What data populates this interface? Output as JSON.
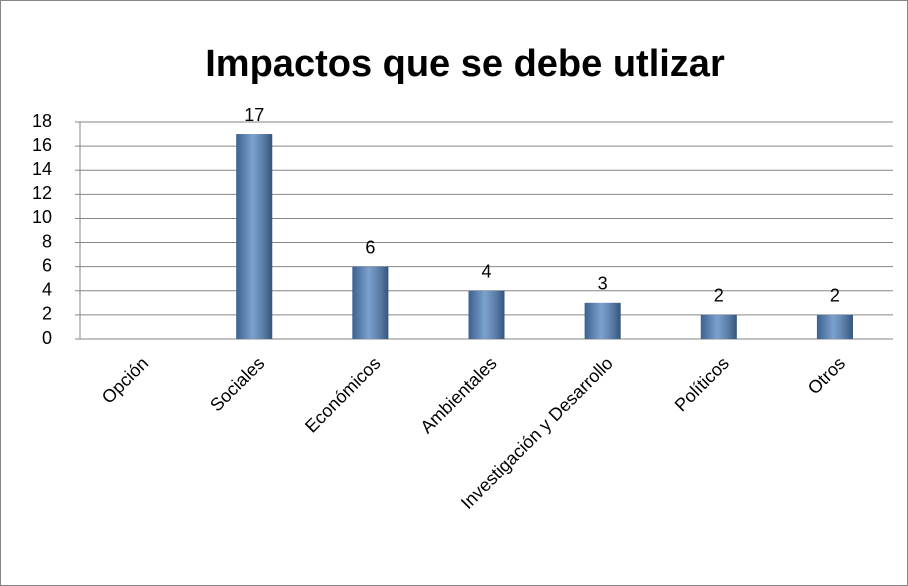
{
  "chart_data": {
    "type": "bar",
    "title": "Impactos que se debe utlizar",
    "categories": [
      "Opción",
      "Sociales",
      "Económicos",
      "Ambientales",
      "Investigación y Desarrollo",
      "Políticos",
      "Otros"
    ],
    "values": [
      null,
      17,
      6,
      4,
      3,
      2,
      2
    ],
    "color": "#4f81bd",
    "ylim": [
      0,
      18
    ],
    "yticks": [
      0,
      2,
      4,
      6,
      8,
      10,
      12,
      14,
      16,
      18
    ],
    "grid": true
  }
}
